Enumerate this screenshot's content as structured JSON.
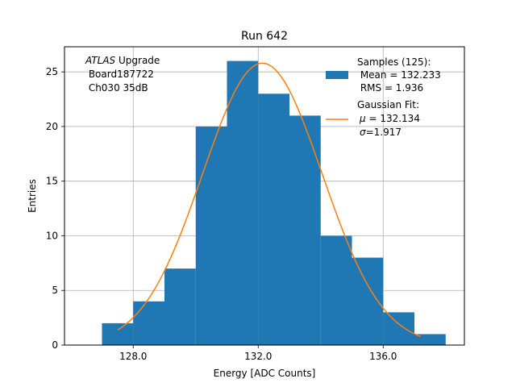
{
  "chart_data": {
    "type": "bar",
    "title": "Run 642",
    "xlabel": "Energy [ADC Counts]",
    "ylabel": "Entries",
    "xlim": [
      125.8,
      138.6
    ],
    "ylim": [
      0,
      27.3
    ],
    "xticks": [
      128.0,
      132.0,
      136.0
    ],
    "xtick_labels": [
      "128.0",
      "132.0",
      "136.0"
    ],
    "yticks": [
      0,
      5,
      10,
      15,
      20,
      25
    ],
    "ytick_labels": [
      "0",
      "5",
      "10",
      "15",
      "20",
      "25"
    ],
    "grid": true,
    "legend_position": "top-right",
    "annotation": {
      "italic": "ATLAS",
      "line1_rest": " Upgrade",
      "line2": " Board187722",
      "line3": " Ch030 35dB"
    },
    "histogram": {
      "bin_edges": [
        127,
        128,
        129,
        130,
        131,
        132,
        133,
        134,
        135,
        136,
        137,
        138
      ],
      "counts": [
        2,
        4,
        7,
        20,
        26,
        23,
        21,
        10,
        8,
        3,
        1
      ],
      "color": "#1f77b4",
      "legend": {
        "line1": "Samples (125):",
        "line2": " Mean = 132.233",
        "line3": " RMS = 1.936"
      }
    },
    "fit": {
      "mu": 132.134,
      "sigma": 1.917,
      "amplitude": 25.8,
      "x_range": [
        127.5,
        137.2
      ],
      "color": "#ff7f0e",
      "legend": {
        "line1": "Gaussian Fit:",
        "line2_symbol": "μ",
        "line2_rest": " = 132.134",
        "line3_symbol": "σ",
        "line3_rest": "=1.917"
      }
    }
  }
}
